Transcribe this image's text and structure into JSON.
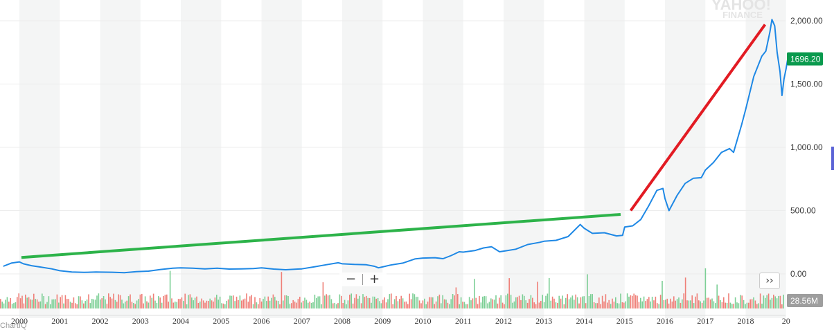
{
  "watermark": {
    "line1": "YAHOO!",
    "line2": "FINANCE"
  },
  "brand": "ChartIQ",
  "zoom": {
    "minus": "−",
    "plus": "+"
  },
  "scroll_button": "››",
  "colors": {
    "price": "#1e88e5",
    "green_trend": "#2db34a",
    "red_trend": "#e21b23",
    "badge_price": "#0a9a4e",
    "badge_volume": "#9e9e9e",
    "vol_up": "#7ccf95",
    "vol_down": "#ef7f78"
  },
  "chart_data": {
    "type": "line",
    "x_ticks": [
      "2000",
      "2001",
      "2002",
      "2003",
      "2004",
      "2005",
      "2006",
      "2007",
      "2008",
      "2009",
      "2010",
      "2011",
      "2012",
      "2013",
      "2014",
      "2015",
      "2016",
      "2017",
      "2018",
      "20"
    ],
    "y_ticks": [
      "2,000.00",
      "1,500.00",
      "1,000.00",
      "500.00",
      "0.00"
    ],
    "y_tick_values": [
      2000,
      1500,
      1000,
      500,
      0
    ],
    "ylim": [
      -30,
      2130
    ],
    "xlim": [
      1999.55,
      2019.05
    ],
    "series": [
      {
        "points": [
          [
            1999.6,
            60
          ],
          [
            1999.8,
            85
          ],
          [
            2000.0,
            95
          ],
          [
            2000.1,
            80
          ],
          [
            2000.3,
            65
          ],
          [
            2000.5,
            55
          ],
          [
            2000.8,
            40
          ],
          [
            2001.0,
            25
          ],
          [
            2001.3,
            15
          ],
          [
            2001.6,
            12
          ],
          [
            2001.9,
            15
          ],
          [
            2002.0,
            14
          ],
          [
            2002.3,
            13
          ],
          [
            2002.6,
            10
          ],
          [
            2002.9,
            18
          ],
          [
            2003.2,
            22
          ],
          [
            2003.5,
            35
          ],
          [
            2003.8,
            45
          ],
          [
            2004.0,
            48
          ],
          [
            2004.3,
            45
          ],
          [
            2004.6,
            40
          ],
          [
            2004.9,
            45
          ],
          [
            2005.2,
            38
          ],
          [
            2005.5,
            40
          ],
          [
            2005.8,
            42
          ],
          [
            2006.0,
            48
          ],
          [
            2006.3,
            38
          ],
          [
            2006.6,
            33
          ],
          [
            2006.9,
            38
          ],
          [
            2007.0,
            40
          ],
          [
            2007.3,
            55
          ],
          [
            2007.6,
            72
          ],
          [
            2007.9,
            88
          ],
          [
            2008.0,
            80
          ],
          [
            2008.3,
            75
          ],
          [
            2008.6,
            72
          ],
          [
            2008.8,
            60
          ],
          [
            2008.9,
            48
          ],
          [
            2009.0,
            55
          ],
          [
            2009.2,
            70
          ],
          [
            2009.5,
            85
          ],
          [
            2009.8,
            118
          ],
          [
            2010.0,
            125
          ],
          [
            2010.3,
            128
          ],
          [
            2010.5,
            120
          ],
          [
            2010.7,
            145
          ],
          [
            2010.9,
            175
          ],
          [
            2011.0,
            172
          ],
          [
            2011.3,
            185
          ],
          [
            2011.5,
            205
          ],
          [
            2011.7,
            215
          ],
          [
            2011.9,
            175
          ],
          [
            2012.0,
            180
          ],
          [
            2012.3,
            195
          ],
          [
            2012.6,
            232
          ],
          [
            2012.9,
            250
          ],
          [
            2013.0,
            258
          ],
          [
            2013.3,
            265
          ],
          [
            2013.6,
            295
          ],
          [
            2013.9,
            390
          ],
          [
            2014.0,
            360
          ],
          [
            2014.2,
            320
          ],
          [
            2014.5,
            325
          ],
          [
            2014.8,
            300
          ],
          [
            2014.95,
            305
          ],
          [
            2015.0,
            370
          ],
          [
            2015.2,
            380
          ],
          [
            2015.4,
            430
          ],
          [
            2015.6,
            540
          ],
          [
            2015.8,
            660
          ],
          [
            2015.95,
            675
          ],
          [
            2016.0,
            595
          ],
          [
            2016.1,
            500
          ],
          [
            2016.3,
            620
          ],
          [
            2016.5,
            715
          ],
          [
            2016.7,
            755
          ],
          [
            2016.9,
            760
          ],
          [
            2017.0,
            820
          ],
          [
            2017.2,
            880
          ],
          [
            2017.4,
            960
          ],
          [
            2017.6,
            990
          ],
          [
            2017.7,
            960
          ],
          [
            2017.9,
            1180
          ],
          [
            2018.0,
            1300
          ],
          [
            2018.2,
            1560
          ],
          [
            2018.4,
            1720
          ],
          [
            2018.5,
            1760
          ],
          [
            2018.6,
            1910
          ],
          [
            2018.65,
            2010
          ],
          [
            2018.72,
            1960
          ],
          [
            2018.78,
            1750
          ],
          [
            2018.85,
            1600
          ],
          [
            2018.9,
            1410
          ],
          [
            2018.95,
            1540
          ],
          [
            2019.0,
            1620
          ],
          [
            2019.04,
            1696.2
          ]
        ]
      }
    ],
    "trend_lines": [
      {
        "color": "green",
        "from": [
          2000.05,
          130
        ],
        "to": [
          2014.9,
          470
        ]
      },
      {
        "color": "red",
        "from": [
          2015.15,
          500
        ],
        "to": [
          2018.48,
          1970
        ]
      }
    ],
    "last_price_label": "1696.20",
    "last_price_value": 1696.2,
    "volume_label": "28.56M",
    "grid": true
  }
}
